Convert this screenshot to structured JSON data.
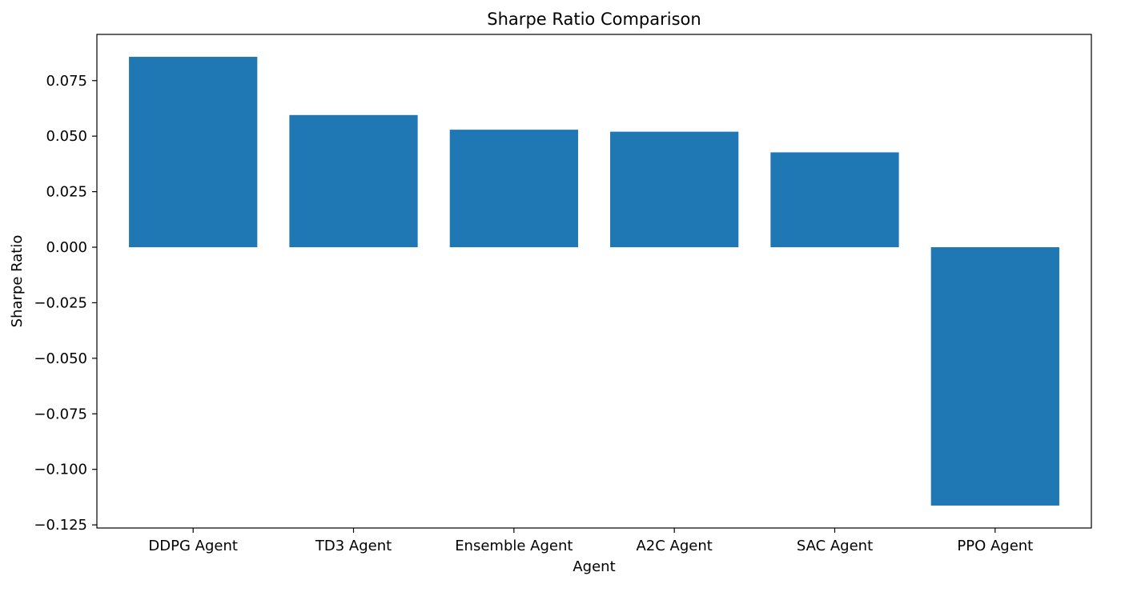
{
  "chart_data": {
    "type": "bar",
    "title": "Sharpe Ratio Comparison",
    "xlabel": "Agent",
    "ylabel": "Sharpe Ratio",
    "categories": [
      "DDPG Agent",
      "TD3 Agent",
      "Ensemble Agent",
      "A2C Agent",
      "SAC Agent",
      "PPO Agent"
    ],
    "values": [
      0.0857,
      0.0595,
      0.0529,
      0.052,
      0.0427,
      -0.1163
    ],
    "ylim": [
      -0.1264,
      0.0958
    ],
    "yticks": [
      0.075,
      0.05,
      0.025,
      0.0,
      -0.025,
      -0.05,
      -0.075,
      -0.1,
      -0.125
    ],
    "ytick_labels": [
      "0.075",
      "0.050",
      "0.025",
      "0.000",
      "−0.025",
      "−0.050",
      "−0.075",
      "−0.100",
      "−0.125"
    ],
    "bar_color": "#1f77b4",
    "grid": false,
    "legend": false
  }
}
